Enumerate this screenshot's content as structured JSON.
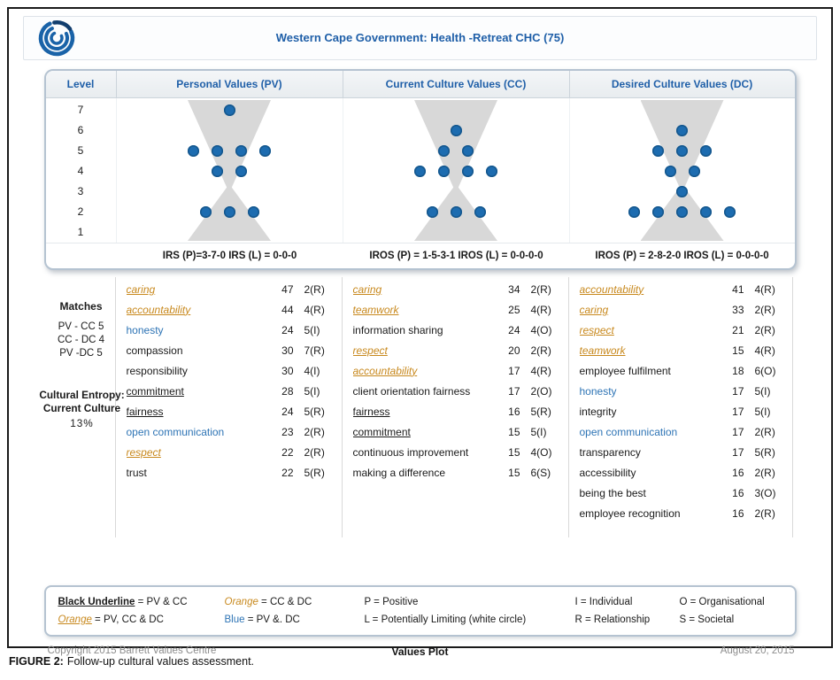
{
  "page": {
    "title": "Western Cape Government: Health -Retreat CHC (75)"
  },
  "panel": {
    "level_header": "Level"
  },
  "chart_data": {
    "type": "scatter",
    "title": "Values Plot",
    "ylabel": "Level",
    "ylim": [
      1,
      7
    ],
    "dot_color": "#1d6cb0",
    "levels": [
      7,
      6,
      5,
      4,
      3,
      2,
      1
    ],
    "columns": [
      {
        "key": "pv",
        "header": "Personal Values (PV)",
        "irs": "IRS (P)=3-7-0 IRS (L) = 0-0-0",
        "dots_per_level": {
          "7": 1,
          "6": 0,
          "5": 4,
          "4": 2,
          "3": 0,
          "2": 3,
          "1": 0
        },
        "values": [
          {
            "name": "caring",
            "votes": 47,
            "code": "2(R)",
            "style": "orange"
          },
          {
            "name": "accountability",
            "votes": 44,
            "code": "4(R)",
            "style": "orange"
          },
          {
            "name": "honesty",
            "votes": 24,
            "code": "5(I)",
            "style": "blue"
          },
          {
            "name": "compassion",
            "votes": 30,
            "code": "7(R)",
            "style": "plain"
          },
          {
            "name": "responsibility",
            "votes": 30,
            "code": "4(I)",
            "style": "plain"
          },
          {
            "name": "commitment",
            "votes": 28,
            "code": "5(I)",
            "style": "black-underline"
          },
          {
            "name": "fairness",
            "votes": 24,
            "code": "5(R)",
            "style": "black-underline"
          },
          {
            "name": "open communication",
            "votes": 23,
            "code": "2(R)",
            "style": "blue"
          },
          {
            "name": "respect",
            "votes": 22,
            "code": "2(R)",
            "style": "orange"
          },
          {
            "name": "trust",
            "votes": 22,
            "code": "5(R)",
            "style": "plain"
          }
        ]
      },
      {
        "key": "cc",
        "header": "Current Culture Values (CC)",
        "irs": "IROS (P) = 1-5-3-1 IROS (L) = 0-0-0-0",
        "dots_per_level": {
          "7": 0,
          "6": 1,
          "5": 2,
          "4": 4,
          "3": 0,
          "2": 3,
          "1": 0
        },
        "values": [
          {
            "name": "caring",
            "votes": 34,
            "code": "2(R)",
            "style": "orange"
          },
          {
            "name": "teamwork",
            "votes": 25,
            "code": "4(R)",
            "style": "orange"
          },
          {
            "name": "information sharing",
            "votes": 24,
            "code": "4(O)",
            "style": "plain"
          },
          {
            "name": "respect",
            "votes": 20,
            "code": "2(R)",
            "style": "orange"
          },
          {
            "name": "accountability",
            "votes": 17,
            "code": "4(R)",
            "style": "orange"
          },
          {
            "name": "client orientation fairness",
            "votes": 17,
            "code": "2(O)",
            "style": "plain"
          },
          {
            "name": "fairness",
            "votes": 16,
            "code": "5(R)",
            "style": "black-underline"
          },
          {
            "name": "commitment",
            "votes": 15,
            "code": "5(I)",
            "style": "black-underline"
          },
          {
            "name": "continuous improvement",
            "votes": 15,
            "code": "4(O)",
            "style": "plain"
          },
          {
            "name": "making a difference",
            "votes": 15,
            "code": "6(S)",
            "style": "plain"
          }
        ]
      },
      {
        "key": "dc",
        "header": "Desired Culture Values (DC)",
        "irs": "IROS (P) = 2-8-2-0 IROS (L) = 0-0-0-0",
        "dots_per_level": {
          "7": 0,
          "6": 1,
          "5": 3,
          "4": 2,
          "3": 1,
          "2": 5,
          "1": 0
        },
        "values": [
          {
            "name": "accountability",
            "votes": 41,
            "code": "4(R)",
            "style": "orange"
          },
          {
            "name": "caring",
            "votes": 33,
            "code": "2(R)",
            "style": "orange"
          },
          {
            "name": "respect",
            "votes": 21,
            "code": "2(R)",
            "style": "orange"
          },
          {
            "name": "teamwork",
            "votes": 15,
            "code": "4(R)",
            "style": "orange"
          },
          {
            "name": "employee fulfilment",
            "votes": 18,
            "code": "6(O)",
            "style": "plain"
          },
          {
            "name": "honesty",
            "votes": 17,
            "code": "5(I)",
            "style": "blue"
          },
          {
            "name": "integrity",
            "votes": 17,
            "code": "5(I)",
            "style": "plain"
          },
          {
            "name": "open communication",
            "votes": 17,
            "code": "2(R)",
            "style": "blue"
          },
          {
            "name": "transparency",
            "votes": 17,
            "code": "5(R)",
            "style": "plain"
          },
          {
            "name": "accessibility",
            "votes": 16,
            "code": "2(R)",
            "style": "plain"
          },
          {
            "name": "being the best",
            "votes": 16,
            "code": "3(O)",
            "style": "plain"
          },
          {
            "name": "employee recognition",
            "votes": 16,
            "code": "2(R)",
            "style": "plain"
          }
        ]
      }
    ]
  },
  "annotations": {
    "matches_label": "Matches",
    "matches": [
      "PV - CC 5",
      "CC - DC 4",
      "PV -DC 5"
    ],
    "entropy_label_line1": "Cultural Entropy:",
    "entropy_label_line2": "Current Culture",
    "entropy_value": "13%"
  },
  "legend": {
    "columns": [
      {
        "lines": [
          [
            {
              "text": "Black Underline",
              "style": "bold-underline"
            },
            {
              "text": " = PV & CC",
              "style": "plain"
            }
          ],
          [
            {
              "text": "Orange",
              "style": "orange-underline"
            },
            {
              "text": " = PV, CC & DC",
              "style": "plain"
            }
          ]
        ]
      },
      {
        "lines": [
          [
            {
              "text": "Orange",
              "style": "orange"
            },
            {
              "text": " = CC & DC",
              "style": "plain"
            }
          ],
          [
            {
              "text": "Blue",
              "style": "blue"
            },
            {
              "text": " = PV &. DC",
              "style": "plain"
            }
          ]
        ]
      },
      {
        "lines": [
          [
            {
              "text": "P = Positive",
              "style": "plain"
            }
          ],
          [
            {
              "text": "L = Potentially Limiting (white circle)",
              "style": "plain"
            }
          ]
        ]
      },
      {
        "lines": [
          [
            {
              "text": "I = Individual",
              "style": "plain"
            }
          ],
          [
            {
              "text": "R = Relationship",
              "style": "plain"
            }
          ]
        ]
      },
      {
        "lines": [
          [
            {
              "text": "O = Organisational",
              "style": "plain"
            }
          ],
          [
            {
              "text": "S = Societal",
              "style": "plain"
            }
          ]
        ]
      }
    ]
  },
  "footer": {
    "copyright": "Copyright 2015 Barrett Values Centre",
    "center_label": "Values Plot",
    "date": "August 20, 2015"
  },
  "caption": {
    "label": "FIGURE 2:",
    "text": "Follow-up cultural values assessment."
  }
}
